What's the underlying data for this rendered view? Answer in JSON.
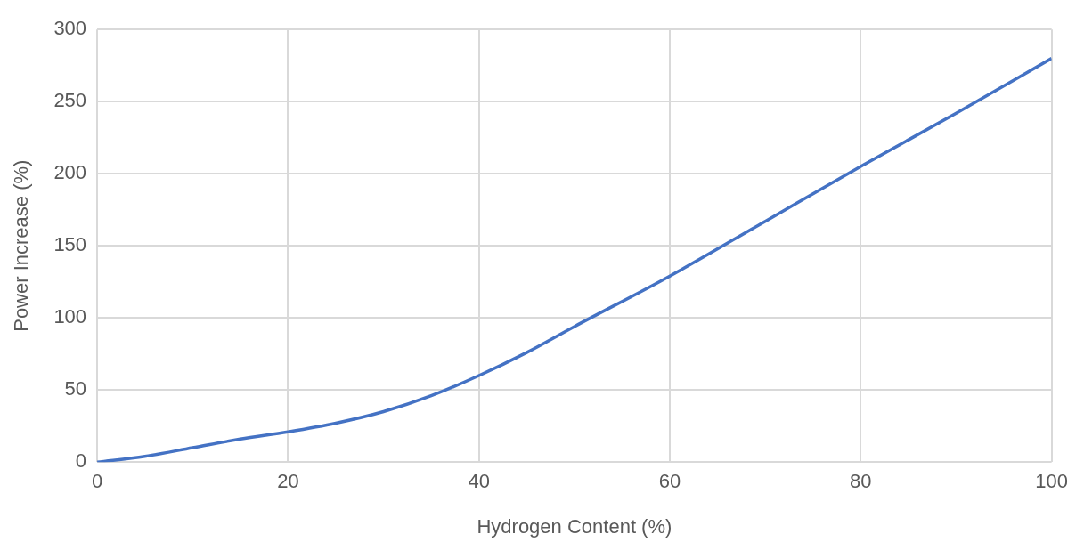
{
  "chart_data": {
    "type": "line",
    "xlabel": "Hydrogen Content (%)",
    "ylabel": "Power Increase (%)",
    "x": [
      0,
      5,
      10,
      15,
      20,
      25,
      30,
      35,
      40,
      45,
      50,
      60,
      70,
      80,
      90,
      100
    ],
    "series": [
      {
        "color": "#4472c4",
        "values": [
          0,
          4,
          10,
          16,
          21,
          27,
          35,
          46,
          60,
          76,
          94,
          129,
          167,
          205,
          242,
          280
        ]
      }
    ],
    "xlim": [
      0,
      100
    ],
    "xticks": [
      0,
      20,
      40,
      60,
      80,
      100
    ],
    "ylim": [
      0,
      300
    ],
    "yticks": [
      0,
      50,
      100,
      150,
      200,
      250,
      300
    ],
    "grid": true,
    "legend": false,
    "marker": "none",
    "line_style": "solid"
  }
}
